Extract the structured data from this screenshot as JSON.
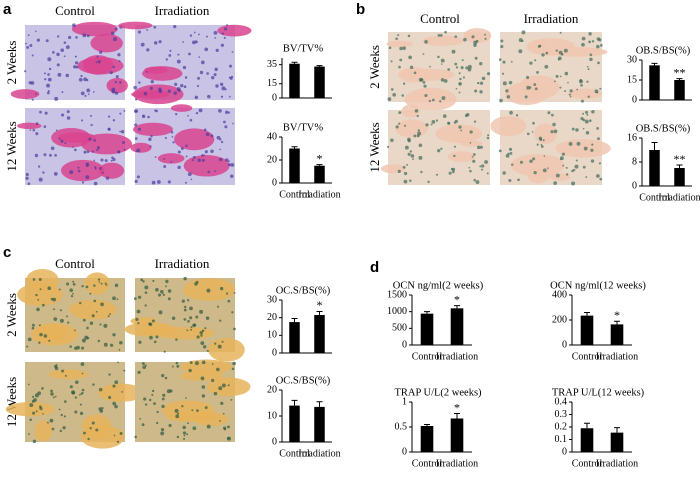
{
  "panels": [
    {
      "letter": "a",
      "columns": [
        "Control",
        "Irradiation"
      ],
      "rows": [
        "2 Weeks",
        "12 Weeks"
      ]
    },
    {
      "letter": "b",
      "columns": [
        "Control",
        "Irradiation"
      ],
      "rows": [
        "2 Weeks",
        "12 Weeks"
      ]
    },
    {
      "letter": "c",
      "columns": [
        "Control",
        "Irradiation"
      ],
      "rows": [
        "2 Weeks",
        "12 Weeks"
      ]
    },
    {
      "letter": "d"
    }
  ],
  "chart_data": [
    {
      "type": "bar",
      "title": "BV/TV%",
      "categories": [
        null,
        null
      ],
      "values": [
        36,
        33
      ],
      "errors": [
        1.5,
        1
      ],
      "significance": [
        null,
        null
      ],
      "color": "#000000",
      "ylim": [
        0,
        42
      ],
      "yticks": [
        0,
        15,
        35
      ]
    },
    {
      "type": "bar",
      "title": "BV/TV%",
      "categories": [
        "Control",
        "Irradiation"
      ],
      "values": [
        30,
        15
      ],
      "errors": [
        1.5,
        1
      ],
      "significance": [
        null,
        "*"
      ],
      "color": "#000000",
      "ylim": [
        0,
        40
      ],
      "yticks": [
        0,
        20,
        40
      ]
    },
    {
      "type": "bar",
      "title": "OB.S/BS(%)",
      "categories": [
        null,
        null
      ],
      "values": [
        26,
        15
      ],
      "errors": [
        1.5,
        1
      ],
      "significance": [
        null,
        "**"
      ],
      "color": "#000000",
      "ylim": [
        0,
        30
      ],
      "yticks": [
        0,
        15,
        30
      ]
    },
    {
      "type": "bar",
      "title": "OB.S/BS(%)",
      "categories": [
        "Control",
        "Irradiation"
      ],
      "values": [
        12,
        6
      ],
      "errors": [
        2.5,
        1
      ],
      "significance": [
        null,
        "**"
      ],
      "color": "#000000",
      "ylim": [
        0,
        16
      ],
      "yticks": [
        0,
        8,
        16
      ]
    },
    {
      "type": "bar",
      "title": "OC.S/BS(%)",
      "categories": [
        null,
        null
      ],
      "values": [
        17.5,
        21.5
      ],
      "errors": [
        2,
        2
      ],
      "significance": [
        null,
        "*"
      ],
      "color": "#000000",
      "ylim": [
        0,
        30
      ],
      "yticks": [
        0,
        10,
        20,
        30
      ]
    },
    {
      "type": "bar",
      "title": "OC.S/BS(%)",
      "categories": [
        "Control",
        "Irradiation"
      ],
      "values": [
        14,
        13.5
      ],
      "errors": [
        2,
        2
      ],
      "significance": [
        null,
        null
      ],
      "color": "#000000",
      "ylim": [
        0,
        20
      ],
      "yticks": [
        0,
        10,
        20
      ]
    },
    {
      "type": "bar",
      "title": "OCN ng/ml(2 weeks)",
      "categories": [
        "Control",
        "Irradiation"
      ],
      "values": [
        940,
        1100
      ],
      "errors": [
        60,
        80
      ],
      "significance": [
        null,
        "*"
      ],
      "color": "#000000",
      "ylim": [
        0,
        1500
      ],
      "yticks": [
        0,
        500,
        1000,
        1500
      ]
    },
    {
      "type": "bar",
      "title": "OCN ng/ml(12 weeks)",
      "categories": [
        "Control",
        "Irradiation"
      ],
      "values": [
        235,
        165
      ],
      "errors": [
        25,
        25
      ],
      "significance": [
        null,
        "*"
      ],
      "color": "#000000",
      "ylim": [
        0,
        400
      ],
      "yticks": [
        0,
        200,
        400
      ]
    },
    {
      "type": "bar",
      "title": "TRAP U/L(2 weeks)",
      "categories": [
        "Control",
        "Irradiation"
      ],
      "values": [
        0.52,
        0.67
      ],
      "errors": [
        0.03,
        0.1
      ],
      "significance": [
        null,
        "*"
      ],
      "color": "#000000",
      "ylim": [
        0,
        1
      ],
      "yticks": [
        0,
        0.5,
        1
      ]
    },
    {
      "type": "bar",
      "title": "TRAP U/L(12 weeks)",
      "categories": [
        "Control",
        "Irradiation"
      ],
      "values": [
        0.19,
        0.155
      ],
      "errors": [
        0.04,
        0.04
      ],
      "significance": [
        null,
        null
      ],
      "color": "#000000",
      "ylim": [
        0,
        0.4
      ],
      "yticks": [
        0,
        0.1,
        0.2,
        0.3,
        0.4
      ]
    }
  ]
}
